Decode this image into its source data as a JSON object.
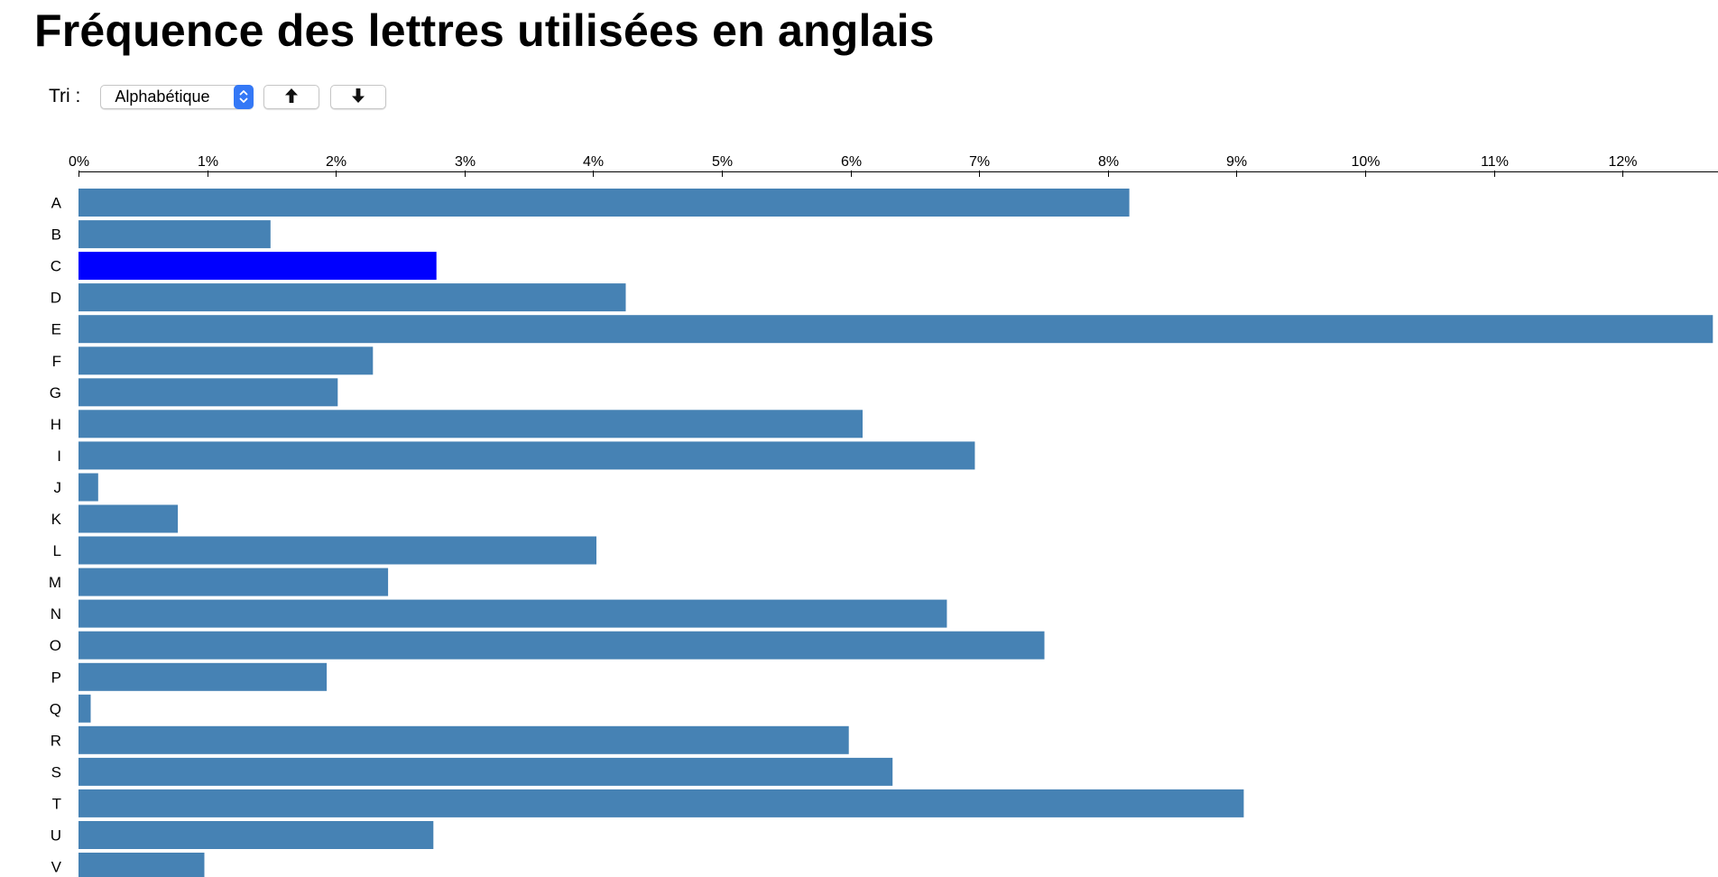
{
  "page": {
    "title": "Fréquence des lettres utilisées en anglais"
  },
  "controls": {
    "sort_label": "Tri :",
    "sort_select_value": "Alphabétique",
    "ascending_button_icon": "arrow-up-icon",
    "descending_button_icon": "arrow-down-icon"
  },
  "colors": {
    "bar": "#4682b4",
    "highlighted_bar": "#0000ff",
    "select_accent": "#3478f6"
  },
  "chart_data": {
    "type": "bar",
    "orientation": "horizontal",
    "categories": [
      "A",
      "B",
      "C",
      "D",
      "E",
      "F",
      "G",
      "H",
      "I",
      "J",
      "K",
      "L",
      "M",
      "N",
      "O",
      "P",
      "Q",
      "R",
      "S",
      "T",
      "U",
      "V"
    ],
    "values": [
      8.167,
      1.492,
      2.782,
      4.253,
      12.702,
      2.288,
      2.015,
      6.094,
      6.966,
      0.153,
      0.772,
      4.025,
      2.406,
      6.749,
      7.507,
      1.929,
      0.095,
      5.987,
      6.327,
      9.056,
      2.758,
      0.978
    ],
    "value_unit": "%",
    "highlighted_category": "C",
    "xlim": [
      0,
      12.7
    ],
    "x_ticks": [
      "0%",
      "1%",
      "2%",
      "3%",
      "4%",
      "5%",
      "6%",
      "7%",
      "8%",
      "9%",
      "10%",
      "11%",
      "12%"
    ],
    "axis_position": "top",
    "grid": false,
    "title": "Fréquence des lettres utilisées en anglais"
  }
}
